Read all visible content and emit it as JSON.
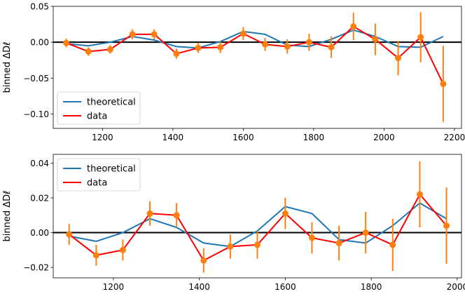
{
  "chart_data": [
    {
      "type": "line",
      "ylabel": "binned ΔDℓ",
      "xlim": [
        1060,
        2220
      ],
      "ylim": [
        -0.12,
        0.05
      ],
      "xticks": [
        1200,
        1400,
        1600,
        1800,
        2000,
        2200
      ],
      "xtick_labels": [
        "1200",
        "1400",
        "1600",
        "1800",
        "2000",
        "2200"
      ],
      "yticks": [
        -0.1,
        -0.05,
        0.0,
        0.05
      ],
      "ytick_labels": [
        "−0.10",
        "−0.05",
        "0.00",
        "0.05"
      ],
      "legend": {
        "position": "bottom-left",
        "entries": [
          "theoretical",
          "data"
        ]
      },
      "series": [
        {
          "name": "theoretical",
          "color": "#1f77b4",
          "x": [
            1097,
            1160,
            1222,
            1285,
            1347,
            1410,
            1472,
            1535,
            1600,
            1662,
            1725,
            1787,
            1850,
            1913,
            1975,
            2040,
            2104,
            2168
          ],
          "values": [
            -0.002,
            -0.005,
            0.0,
            0.008,
            0.003,
            -0.006,
            -0.008,
            0.001,
            0.015,
            0.011,
            -0.004,
            -0.006,
            0.004,
            0.017,
            0.008,
            -0.006,
            -0.007,
            0.008
          ]
        },
        {
          "name": "data",
          "color": "#ff0000",
          "x": [
            1097,
            1160,
            1222,
            1285,
            1347,
            1410,
            1472,
            1535,
            1600,
            1662,
            1725,
            1787,
            1850,
            1913,
            1975,
            2040,
            2104,
            2168
          ],
          "values": [
            -0.001,
            -0.013,
            -0.01,
            0.011,
            0.011,
            -0.016,
            -0.008,
            -0.007,
            0.012,
            -0.003,
            -0.006,
            0.0,
            -0.007,
            0.022,
            0.004,
            -0.022,
            0.007,
            -0.058
          ],
          "errors": [
            0.006,
            0.006,
            0.006,
            0.007,
            0.007,
            0.007,
            0.007,
            0.008,
            0.009,
            0.009,
            0.01,
            0.012,
            0.015,
            0.019,
            0.022,
            0.024,
            0.035,
            0.053
          ],
          "marker_color": "#ff7f0e"
        }
      ]
    },
    {
      "type": "line",
      "ylabel": "binned ΔDℓ",
      "xlim": [
        1060,
        2010
      ],
      "ylim": [
        -0.026,
        0.045
      ],
      "xticks": [
        1200,
        1400,
        1600,
        1800,
        2000
      ],
      "xtick_labels": [
        "1200",
        "1400",
        "1600",
        "1800",
        "2000"
      ],
      "yticks": [
        -0.02,
        0.0,
        0.02,
        0.04
      ],
      "ytick_labels": [
        "−0.02",
        "0.00",
        "0.02",
        "0.04"
      ],
      "legend": {
        "position": "top-left",
        "entries": [
          "theoretical",
          "data"
        ]
      },
      "series": [
        {
          "name": "theoretical",
          "color": "#1f77b4",
          "x": [
            1097,
            1160,
            1222,
            1285,
            1347,
            1410,
            1472,
            1535,
            1600,
            1662,
            1725,
            1787,
            1850,
            1913,
            1975
          ],
          "values": [
            -0.002,
            -0.005,
            0.0,
            0.008,
            0.003,
            -0.006,
            -0.008,
            0.001,
            0.015,
            0.011,
            -0.004,
            -0.006,
            0.004,
            0.017,
            0.008
          ]
        },
        {
          "name": "data",
          "color": "#ff0000",
          "x": [
            1097,
            1160,
            1222,
            1285,
            1347,
            1410,
            1472,
            1535,
            1600,
            1662,
            1725,
            1787,
            1850,
            1913,
            1975
          ],
          "values": [
            -0.001,
            -0.013,
            -0.01,
            0.011,
            0.01,
            -0.016,
            -0.008,
            -0.007,
            0.011,
            -0.003,
            -0.006,
            0.0,
            -0.007,
            0.022,
            0.004
          ],
          "errors": [
            0.006,
            0.006,
            0.006,
            0.007,
            0.007,
            0.007,
            0.007,
            0.008,
            0.009,
            0.009,
            0.01,
            0.012,
            0.015,
            0.019,
            0.022
          ],
          "marker_color": "#ff7f0e"
        }
      ]
    }
  ]
}
